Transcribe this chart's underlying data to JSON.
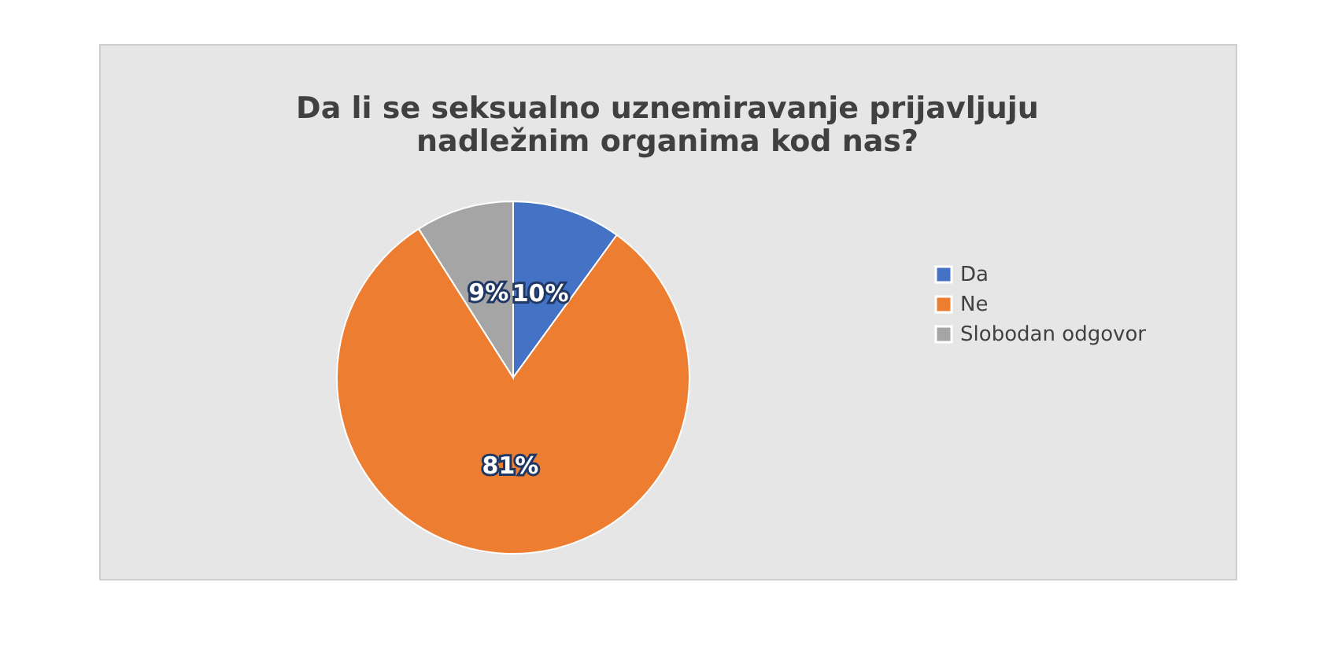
{
  "chart_data": {
    "type": "pie",
    "title": "Da li se seksualno uznemiravanje prijavljuju nadležnim organima kod nas?",
    "categories": [
      "Da",
      "Ne",
      "Slobodan odgovor"
    ],
    "values": [
      10,
      81,
      9
    ],
    "colors": [
      "#4472c4",
      "#ed7d31",
      "#a5a5a5"
    ],
    "value_labels": [
      "10%",
      "81%",
      "9%"
    ],
    "legend": "right"
  }
}
